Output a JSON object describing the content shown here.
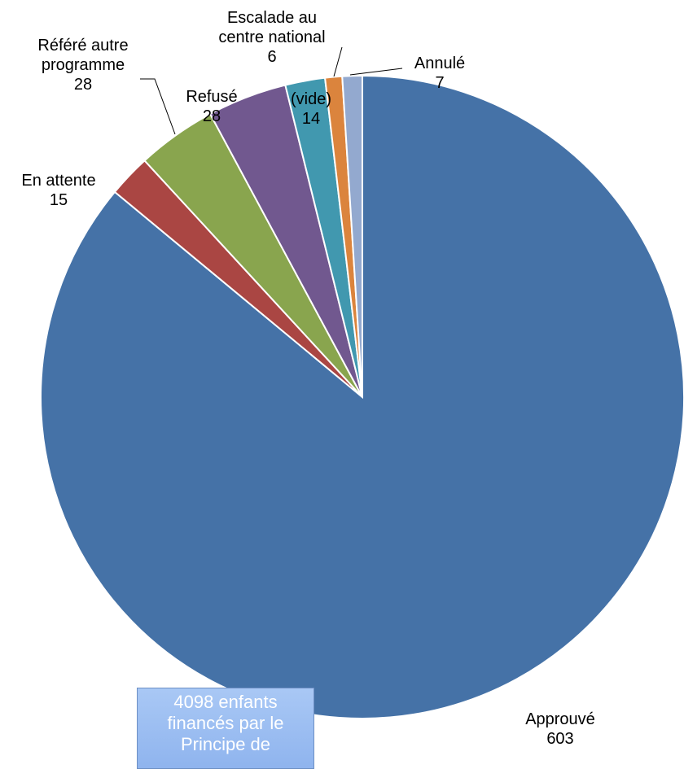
{
  "chart_data": {
    "type": "pie",
    "title": "",
    "slices": [
      {
        "label": "Approuvé",
        "value": 603,
        "color": "#4572a7"
      },
      {
        "label": "En attente",
        "value": 15,
        "color": "#aa4643"
      },
      {
        "label": "Référé autre programme",
        "label_lines": [
          "Référé autre",
          "programme"
        ],
        "value": 28,
        "color": "#89a54e"
      },
      {
        "label": "Refusé",
        "value": 28,
        "color": "#71588f"
      },
      {
        "label": "(vide)",
        "value": 14,
        "color": "#4198af"
      },
      {
        "label": "Escalade au centre national",
        "label_lines": [
          "Escalade au",
          "centre national"
        ],
        "value": 6,
        "color": "#db843d"
      },
      {
        "label": "Annulé",
        "value": 7,
        "color": "#93a9cf"
      }
    ],
    "start_angle_deg": 0,
    "direction": "clockwise-reversed",
    "legend": "none",
    "data_labels": "category-and-value"
  },
  "callout": {
    "lines": [
      "4098 enfants",
      "financés par le",
      "Principe de"
    ]
  }
}
